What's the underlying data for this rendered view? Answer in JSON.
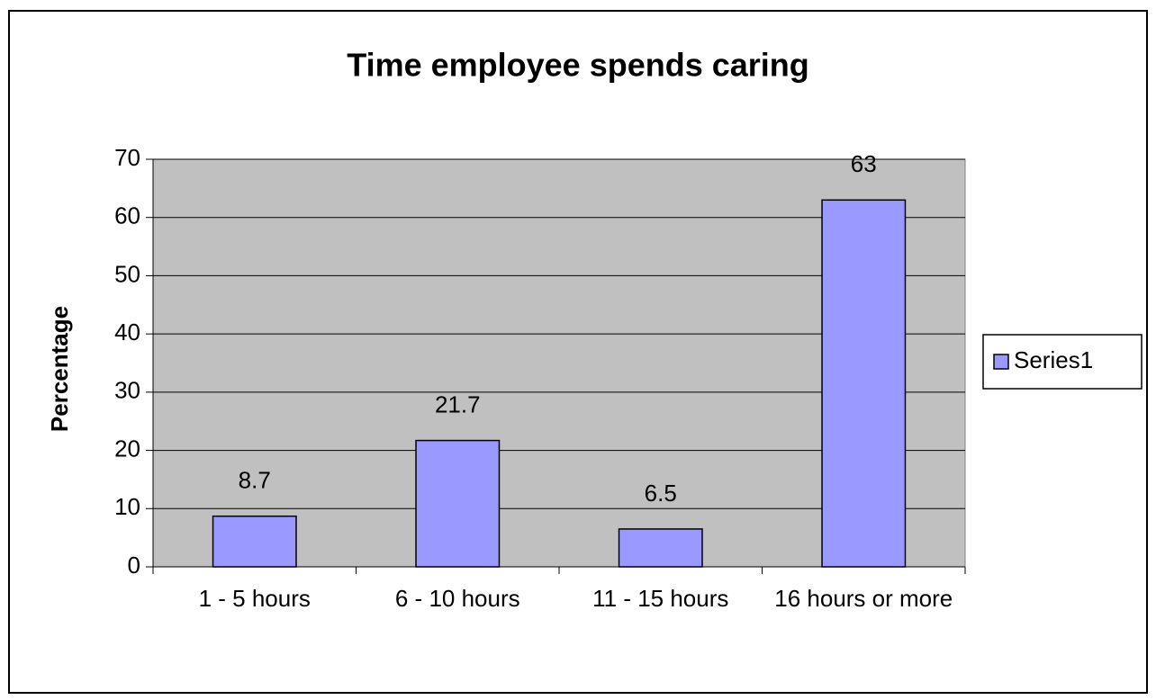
{
  "chart_data": {
    "type": "bar",
    "title": "Time employee spends caring",
    "y_label": "Percentage",
    "categories": [
      "1 - 5 hours",
      "6 - 10 hours",
      "11 - 15 hours",
      "16 hours or more"
    ],
    "series": [
      {
        "name": "Series1",
        "color": "#9999ff",
        "values": [
          8.7,
          21.7,
          6.5,
          63
        ]
      }
    ],
    "ylim": [
      0,
      70
    ],
    "yticks": [
      0,
      10,
      20,
      30,
      40,
      50,
      60,
      70
    ],
    "grid": true,
    "legend": "right",
    "plot_background": "#c0c0c0"
  }
}
